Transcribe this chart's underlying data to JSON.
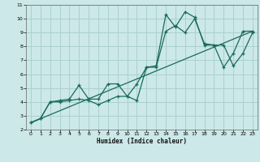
{
  "xlabel": "Humidex (Indice chaleur)",
  "bg_color": "#cce8e8",
  "grid_color": "#aad0d0",
  "line_color": "#1a6b5a",
  "xlim": [
    -0.5,
    23.5
  ],
  "ylim": [
    2,
    11
  ],
  "xticks": [
    0,
    1,
    2,
    3,
    4,
    5,
    6,
    7,
    8,
    9,
    10,
    11,
    12,
    13,
    14,
    15,
    16,
    17,
    18,
    19,
    20,
    21,
    22,
    23
  ],
  "yticks": [
    2,
    3,
    4,
    5,
    6,
    7,
    8,
    9,
    10,
    11
  ],
  "series1_x": [
    0,
    1,
    2,
    3,
    4,
    5,
    6,
    7,
    8,
    9,
    10,
    11,
    12,
    13,
    14,
    15,
    16,
    17,
    18,
    19,
    20,
    21,
    22,
    23
  ],
  "series1_y": [
    2.5,
    2.8,
    4.0,
    4.0,
    4.1,
    4.2,
    4.1,
    3.8,
    4.1,
    4.4,
    4.4,
    4.1,
    6.5,
    6.6,
    10.3,
    9.4,
    10.5,
    10.1,
    8.1,
    8.1,
    6.5,
    7.5,
    9.1,
    9.1
  ],
  "series2_x": [
    0,
    1,
    2,
    3,
    4,
    5,
    6,
    7,
    8,
    9,
    10,
    11,
    12,
    13,
    14,
    15,
    16,
    17,
    18,
    19,
    20,
    21,
    22,
    23
  ],
  "series2_y": [
    2.5,
    2.8,
    4.0,
    4.1,
    4.2,
    5.2,
    4.2,
    4.2,
    5.3,
    5.3,
    4.4,
    5.3,
    6.5,
    6.5,
    9.1,
    9.5,
    9.0,
    10.0,
    8.2,
    8.1,
    8.1,
    6.6,
    7.5,
    9.0
  ],
  "series3_x": [
    0,
    23
  ],
  "series3_y": [
    2.5,
    9.1
  ]
}
